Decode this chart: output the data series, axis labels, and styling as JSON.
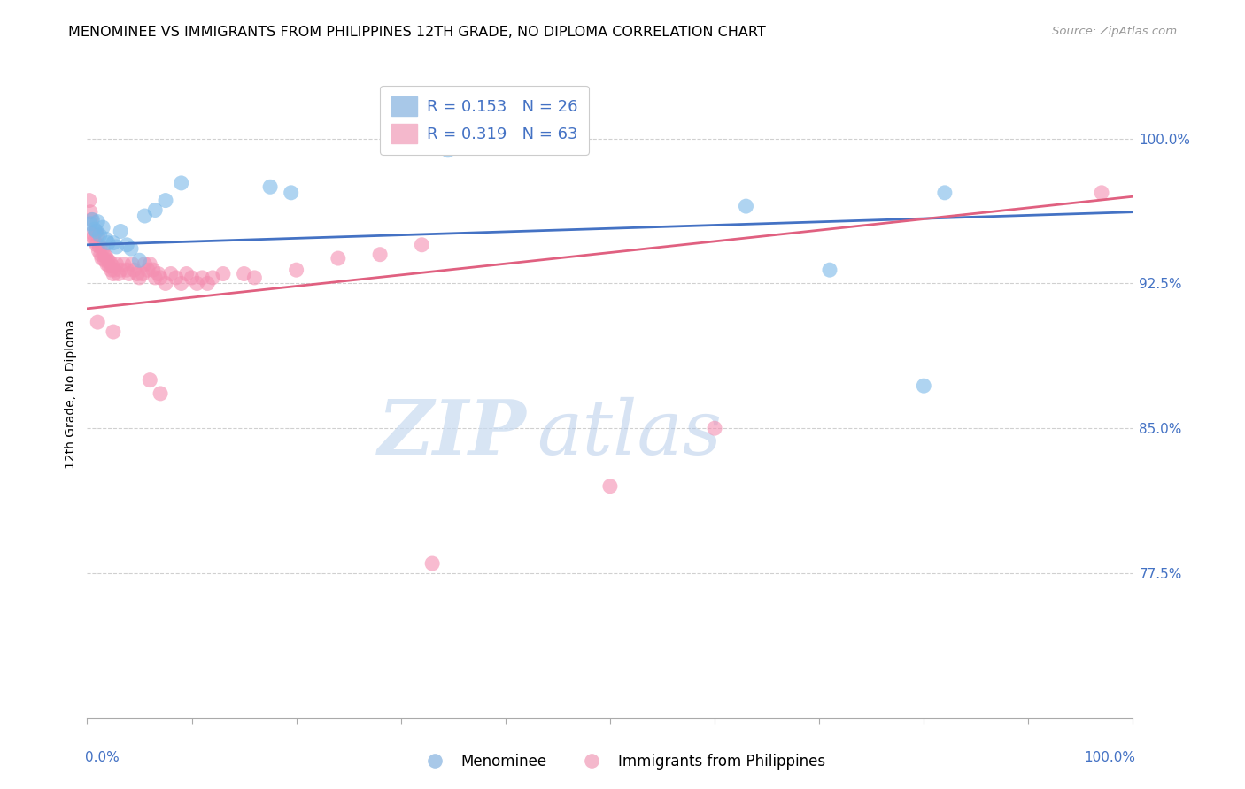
{
  "title": "MENOMINEE VS IMMIGRANTS FROM PHILIPPINES 12TH GRADE, NO DIPLOMA CORRELATION CHART",
  "source": "Source: ZipAtlas.com",
  "ylabel": "12th Grade, No Diploma",
  "ytick_labels": [
    "100.0%",
    "92.5%",
    "85.0%",
    "77.5%"
  ],
  "ytick_values": [
    1.0,
    0.925,
    0.85,
    0.775
  ],
  "xlim": [
    0.0,
    1.0
  ],
  "ylim": [
    0.7,
    1.035
  ],
  "blue_color": "#7ab8e8",
  "pink_color": "#f48fb1",
  "blue_line_color": "#4472c4",
  "pink_line_color": "#e06080",
  "blue_scatter": [
    [
      0.003,
      0.956
    ],
    [
      0.005,
      0.958
    ],
    [
      0.007,
      0.953
    ],
    [
      0.009,
      0.952
    ],
    [
      0.01,
      0.957
    ],
    [
      0.012,
      0.95
    ],
    [
      0.015,
      0.954
    ],
    [
      0.018,
      0.948
    ],
    [
      0.02,
      0.946
    ],
    [
      0.025,
      0.946
    ],
    [
      0.028,
      0.944
    ],
    [
      0.032,
      0.952
    ],
    [
      0.038,
      0.945
    ],
    [
      0.042,
      0.943
    ],
    [
      0.05,
      0.937
    ],
    [
      0.055,
      0.96
    ],
    [
      0.065,
      0.963
    ],
    [
      0.075,
      0.968
    ],
    [
      0.09,
      0.977
    ],
    [
      0.175,
      0.975
    ],
    [
      0.195,
      0.972
    ],
    [
      0.345,
      0.994
    ],
    [
      0.63,
      0.965
    ],
    [
      0.71,
      0.932
    ],
    [
      0.8,
      0.872
    ],
    [
      0.82,
      0.972
    ]
  ],
  "pink_scatter": [
    [
      0.002,
      0.968
    ],
    [
      0.003,
      0.962
    ],
    [
      0.004,
      0.958
    ],
    [
      0.005,
      0.951
    ],
    [
      0.006,
      0.949
    ],
    [
      0.007,
      0.947
    ],
    [
      0.008,
      0.952
    ],
    [
      0.009,
      0.945
    ],
    [
      0.01,
      0.95
    ],
    [
      0.011,
      0.942
    ],
    [
      0.012,
      0.944
    ],
    [
      0.013,
      0.94
    ],
    [
      0.014,
      0.938
    ],
    [
      0.015,
      0.943
    ],
    [
      0.016,
      0.94
    ],
    [
      0.017,
      0.937
    ],
    [
      0.018,
      0.939
    ],
    [
      0.019,
      0.935
    ],
    [
      0.02,
      0.937
    ],
    [
      0.021,
      0.934
    ],
    [
      0.022,
      0.936
    ],
    [
      0.023,
      0.932
    ],
    [
      0.024,
      0.934
    ],
    [
      0.025,
      0.93
    ],
    [
      0.026,
      0.932
    ],
    [
      0.028,
      0.935
    ],
    [
      0.03,
      0.93
    ],
    [
      0.032,
      0.932
    ],
    [
      0.035,
      0.935
    ],
    [
      0.038,
      0.932
    ],
    [
      0.04,
      0.93
    ],
    [
      0.043,
      0.935
    ],
    [
      0.045,
      0.932
    ],
    [
      0.048,
      0.93
    ],
    [
      0.05,
      0.928
    ],
    [
      0.053,
      0.93
    ],
    [
      0.055,
      0.935
    ],
    [
      0.058,
      0.932
    ],
    [
      0.06,
      0.935
    ],
    [
      0.063,
      0.932
    ],
    [
      0.065,
      0.928
    ],
    [
      0.068,
      0.93
    ],
    [
      0.07,
      0.928
    ],
    [
      0.075,
      0.925
    ],
    [
      0.08,
      0.93
    ],
    [
      0.085,
      0.928
    ],
    [
      0.09,
      0.925
    ],
    [
      0.095,
      0.93
    ],
    [
      0.1,
      0.928
    ],
    [
      0.105,
      0.925
    ],
    [
      0.11,
      0.928
    ],
    [
      0.115,
      0.925
    ],
    [
      0.12,
      0.928
    ],
    [
      0.13,
      0.93
    ],
    [
      0.15,
      0.93
    ],
    [
      0.16,
      0.928
    ],
    [
      0.2,
      0.932
    ],
    [
      0.24,
      0.938
    ],
    [
      0.28,
      0.94
    ],
    [
      0.32,
      0.945
    ],
    [
      0.01,
      0.905
    ],
    [
      0.025,
      0.9
    ],
    [
      0.06,
      0.875
    ],
    [
      0.07,
      0.868
    ],
    [
      0.33,
      0.78
    ],
    [
      0.5,
      0.82
    ],
    [
      0.6,
      0.85
    ],
    [
      0.97,
      0.972
    ]
  ],
  "blue_line_x": [
    0.0,
    1.0
  ],
  "blue_line_y": [
    0.945,
    0.962
  ],
  "pink_line_x": [
    0.0,
    1.0
  ],
  "pink_line_y": [
    0.912,
    0.97
  ],
  "watermark_zip": "ZIP",
  "watermark_atlas": "atlas",
  "grid_color": "#d0d0d0",
  "bg_color": "#ffffff",
  "title_fontsize": 11.5,
  "axis_tick_color": "#4472c4"
}
